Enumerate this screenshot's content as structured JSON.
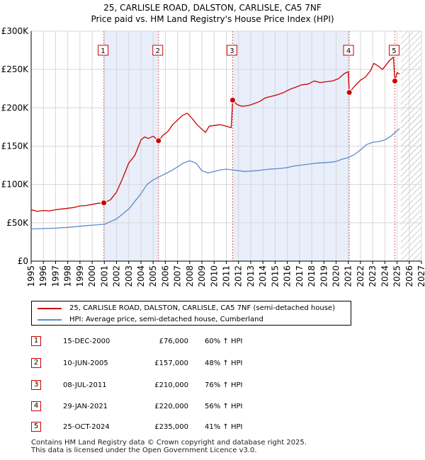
{
  "title": "25, CARLISLE ROAD, DALSTON, CARLISLE, CA5 7NF",
  "subtitle": "Price paid vs. HM Land Registry's House Price Index (HPI)",
  "colors": {
    "red": "#cc0000",
    "blue": "#5b8ccc",
    "shade": "#e8eefa",
    "vline": "#dd6666",
    "grid": "#d7d7d7",
    "hatch": "#999999"
  },
  "chart_data": {
    "type": "line",
    "title": "25, CARLISLE ROAD, DALSTON, CARLISLE, CA5 7NF",
    "subtitle": "Price paid vs. HM Land Registry's House Price Index (HPI)",
    "xlim": [
      1995,
      2027
    ],
    "ylim": [
      0,
      300000
    ],
    "x_ticks": [
      "1995",
      "1996",
      "1997",
      "1998",
      "1999",
      "2000",
      "2001",
      "2002",
      "2003",
      "2004",
      "2005",
      "2006",
      "2007",
      "2008",
      "2009",
      "2010",
      "2011",
      "2012",
      "2013",
      "2014",
      "2015",
      "2016",
      "2017",
      "2018",
      "2019",
      "2020",
      "2021",
      "2022",
      "2023",
      "2024",
      "2025",
      "2026",
      "2027"
    ],
    "y_ticks": [
      {
        "value": 0,
        "label": "£0"
      },
      {
        "value": 50000,
        "label": "£50K"
      },
      {
        "value": 100000,
        "label": "£100K"
      },
      {
        "value": 150000,
        "label": "£150K"
      },
      {
        "value": 200000,
        "label": "£200K"
      },
      {
        "value": 250000,
        "label": "£250K"
      },
      {
        "value": 300000,
        "label": "£300K"
      }
    ],
    "grid": true,
    "legend_position": "below",
    "forecast_hatch_from": 2025.3,
    "shaded_periods": [
      [
        2000.96,
        2005.44
      ],
      [
        2011.52,
        2021.08
      ]
    ],
    "series": [
      {
        "name": "25, CARLISLE ROAD, DALSTON, CARLISLE, CA5 7NF (semi-detached house)",
        "color": "#cc0000",
        "x": [
          1995.0,
          1995.5,
          1996.0,
          1996.5,
          1997.0,
          1997.5,
          1998.0,
          1998.5,
          1999.0,
          1999.5,
          2000.0,
          2000.5,
          2000.96,
          2001.5,
          2002.0,
          2002.5,
          2003.0,
          2003.5,
          2004.0,
          2004.3,
          2004.6,
          2005.0,
          2005.44,
          2005.8,
          2006.2,
          2006.6,
          2007.0,
          2007.4,
          2007.8,
          2008.2,
          2008.6,
          2009.0,
          2009.3,
          2009.6,
          2010.0,
          2010.5,
          2011.0,
          2011.4,
          2011.52,
          2011.9,
          2012.3,
          2012.8,
          2013.2,
          2013.7,
          2014.2,
          2014.7,
          2015.2,
          2015.7,
          2016.2,
          2016.7,
          2017.2,
          2017.7,
          2018.2,
          2018.7,
          2019.2,
          2019.7,
          2020.2,
          2020.7,
          2021.0,
          2021.08,
          2021.5,
          2022.0,
          2022.4,
          2022.8,
          2023.1,
          2023.5,
          2023.8,
          2024.1,
          2024.4,
          2024.7,
          2024.82,
          2025.0,
          2025.2
        ],
        "y": [
          67000,
          65000,
          66000,
          65500,
          67000,
          68000,
          69000,
          70000,
          72000,
          72500,
          74000,
          75500,
          76000,
          80000,
          90000,
          108000,
          128000,
          138000,
          158000,
          162000,
          160000,
          163000,
          157000,
          164000,
          169000,
          178000,
          184000,
          190000,
          193000,
          186000,
          178000,
          172000,
          168000,
          176000,
          177000,
          178000,
          176000,
          174000,
          210000,
          204000,
          202000,
          203000,
          205000,
          208000,
          213000,
          215000,
          217000,
          220000,
          224000,
          227000,
          230000,
          231000,
          235000,
          233000,
          234000,
          235000,
          238000,
          245000,
          247000,
          220000,
          228000,
          236000,
          240000,
          248000,
          258000,
          254000,
          250000,
          256000,
          262000,
          266000,
          235000,
          246000,
          244000
        ]
      },
      {
        "name": "HPI: Average price, semi-detached house, Cumberland",
        "color": "#5b8ccc",
        "x": [
          1995.0,
          1996.0,
          1997.0,
          1998.0,
          1999.0,
          2000.0,
          2001.0,
          2002.0,
          2003.0,
          2004.0,
          2004.5,
          2005.0,
          2005.5,
          2006.0,
          2006.5,
          2007.0,
          2007.5,
          2008.0,
          2008.5,
          2009.0,
          2009.5,
          2010.0,
          2010.5,
          2011.0,
          2011.5,
          2012.0,
          2012.5,
          2013.0,
          2013.5,
          2014.0,
          2014.5,
          2015.0,
          2015.5,
          2016.0,
          2016.5,
          2017.0,
          2017.5,
          2018.0,
          2018.5,
          2019.0,
          2019.5,
          2020.0,
          2020.5,
          2021.0,
          2021.5,
          2022.0,
          2022.5,
          2023.0,
          2023.5,
          2024.0,
          2024.5,
          2025.0,
          2025.2
        ],
        "y": [
          42000,
          42500,
          43000,
          44000,
          45500,
          47000,
          48000,
          55000,
          68000,
          88000,
          100000,
          106000,
          110000,
          114000,
          118000,
          123000,
          128000,
          131000,
          128000,
          118000,
          115000,
          117000,
          119000,
          120000,
          119000,
          118000,
          117000,
          117500,
          118000,
          119000,
          120000,
          120500,
          121000,
          122000,
          124000,
          125000,
          126000,
          127000,
          128000,
          128500,
          129000,
          130000,
          133000,
          135000,
          139000,
          145000,
          152000,
          155000,
          156000,
          158000,
          163000,
          170000,
          173000
        ]
      }
    ],
    "sales": [
      {
        "n": "1",
        "x": 2000.96,
        "y": 76000
      },
      {
        "n": "2",
        "x": 2005.44,
        "y": 157000
      },
      {
        "n": "3",
        "x": 2011.52,
        "y": 210000
      },
      {
        "n": "4",
        "x": 2021.08,
        "y": 220000
      },
      {
        "n": "5",
        "x": 2024.82,
        "y": 235000
      }
    ]
  },
  "legend": {
    "red_label": "25, CARLISLE ROAD, DALSTON, CARLISLE, CA5 7NF (semi-detached house)",
    "blue_label": "HPI: Average price, semi-detached house, Cumberland"
  },
  "transactions": [
    {
      "n": "1",
      "date": "15-DEC-2000",
      "price": "£76,000",
      "hpi": "60% ↑ HPI"
    },
    {
      "n": "2",
      "date": "10-JUN-2005",
      "price": "£157,000",
      "hpi": "48% ↑ HPI"
    },
    {
      "n": "3",
      "date": "08-JUL-2011",
      "price": "£210,000",
      "hpi": "76% ↑ HPI"
    },
    {
      "n": "4",
      "date": "29-JAN-2021",
      "price": "£220,000",
      "hpi": "56% ↑ HPI"
    },
    {
      "n": "5",
      "date": "25-OCT-2024",
      "price": "£235,000",
      "hpi": "41% ↑ HPI"
    }
  ],
  "footer": {
    "line1": "Contains HM Land Registry data © Crown copyright and database right 2025.",
    "line2": "This data is licensed under the Open Government Licence v3.0."
  }
}
